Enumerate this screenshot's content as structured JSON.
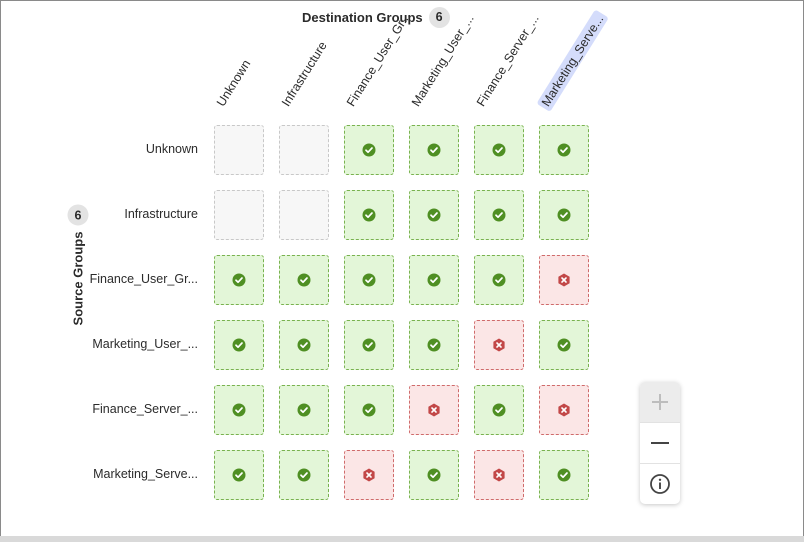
{
  "destination": {
    "title": "Destination Groups",
    "count": "6"
  },
  "source": {
    "title": "Source Groups",
    "count": "6"
  },
  "columns": [
    {
      "label": "Unknown",
      "selected": false
    },
    {
      "label": "Infrastructure",
      "selected": false
    },
    {
      "label": "Finance_User_Gr...",
      "selected": false
    },
    {
      "label": "Marketing_User_...",
      "selected": false
    },
    {
      "label": "Finance_Server_...",
      "selected": false
    },
    {
      "label": "Marketing_Serve...",
      "selected": true
    }
  ],
  "rows": [
    {
      "label": "Unknown",
      "cells": [
        "none",
        "none",
        "allow",
        "allow",
        "allow",
        "allow"
      ]
    },
    {
      "label": "Infrastructure",
      "cells": [
        "none",
        "none",
        "allow",
        "allow",
        "allow",
        "allow"
      ]
    },
    {
      "label": "Finance_User_Gr...",
      "cells": [
        "allow",
        "allow",
        "allow",
        "allow",
        "allow",
        "deny"
      ]
    },
    {
      "label": "Marketing_User_...",
      "cells": [
        "allow",
        "allow",
        "allow",
        "allow",
        "deny",
        "allow"
      ]
    },
    {
      "label": "Finance_Server_...",
      "cells": [
        "allow",
        "allow",
        "allow",
        "deny",
        "allow",
        "deny"
      ]
    },
    {
      "label": "Marketing_Serve...",
      "cells": [
        "allow",
        "allow",
        "deny",
        "allow",
        "deny",
        "allow"
      ]
    }
  ],
  "icons": {
    "allow": "check-circle-icon",
    "deny": "x-hexagon-icon",
    "zoom_in": "plus-icon",
    "zoom_out": "minus-icon",
    "info": "info-circle-icon"
  },
  "zoom": {
    "zoom_in_disabled": true
  },
  "colors": {
    "allow_fill": "#e3f6d8",
    "allow_border": "#79b24f",
    "allow_icon": "#4f8f23",
    "deny_fill": "#fbe6e6",
    "deny_border": "#cf6b6b",
    "deny_icon": "#c24848",
    "empty_fill": "#f7f7f7",
    "selected_highlight": "#d4dcfb"
  }
}
